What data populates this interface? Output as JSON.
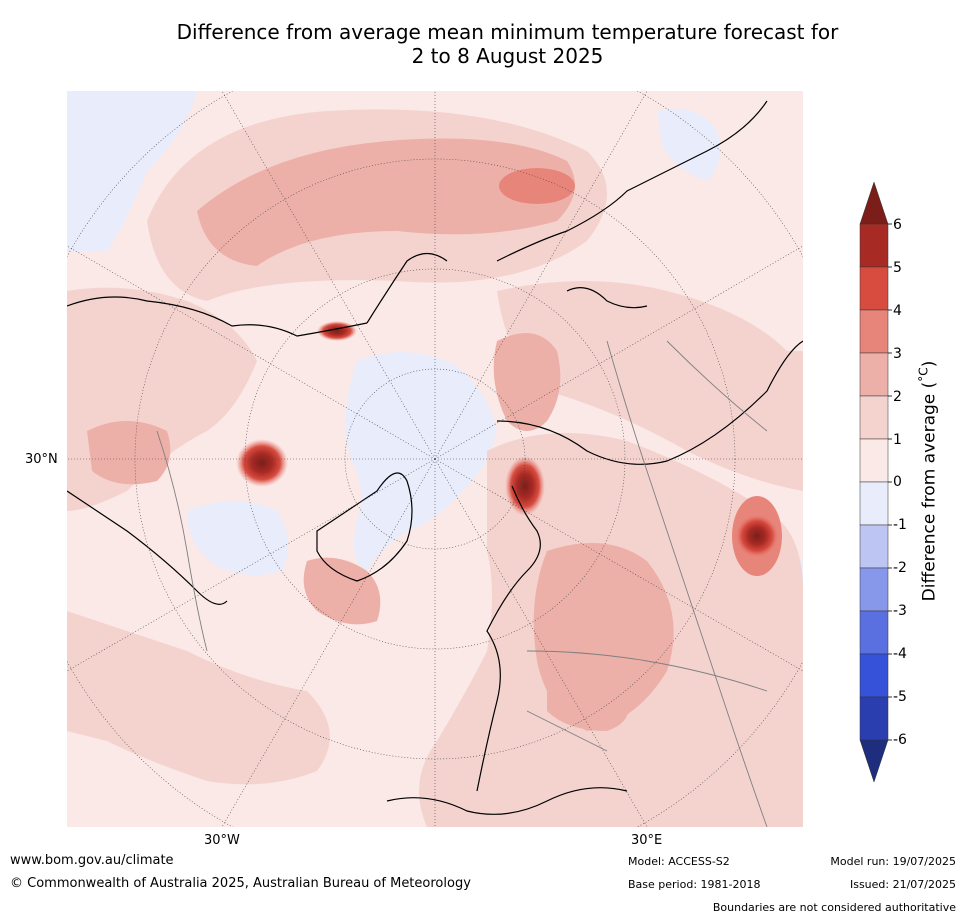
{
  "title_line1": "Difference from average mean minimum temperature forecast for",
  "title_line2": "2 to 8 August 2025",
  "map": {
    "projection": "north-polar-stereographic",
    "latitude_label": "30°N",
    "longitude_labels": [
      "30°W",
      "30°E"
    ],
    "ocean_color": "#fbe9e7",
    "land_border_color": "#7f7f7f",
    "coast_color": "#000000"
  },
  "colorbar": {
    "label": "Difference from average (°C)",
    "label_prefix": "Difference from average (",
    "label_unit": "°C",
    "label_suffix": ")",
    "ticks": [
      "6",
      "5",
      "4",
      "3",
      "2",
      "1",
      "0",
      "-1",
      "-2",
      "-3",
      "-4",
      "-5",
      "-6"
    ],
    "bins": [
      {
        "from": 6,
        "to": 99,
        "color": "#7b1e1a"
      },
      {
        "from": 5,
        "to": 6,
        "color": "#a82a24"
      },
      {
        "from": 4,
        "to": 5,
        "color": "#d84c40"
      },
      {
        "from": 3,
        "to": 4,
        "color": "#e8857b"
      },
      {
        "from": 2,
        "to": 3,
        "color": "#edb0a9"
      },
      {
        "from": 1,
        "to": 2,
        "color": "#f4d3cf"
      },
      {
        "from": 0,
        "to": 1,
        "color": "#fbe9e7"
      },
      {
        "from": -1,
        "to": 0,
        "color": "#e8ecfb"
      },
      {
        "from": -2,
        "to": -1,
        "color": "#bdc6f2"
      },
      {
        "from": -3,
        "to": -2,
        "color": "#8798ea"
      },
      {
        "from": -4,
        "to": -3,
        "color": "#5a6fe0"
      },
      {
        "from": -5,
        "to": -4,
        "color": "#3552d9"
      },
      {
        "from": -6,
        "to": -5,
        "color": "#2a3eb0"
      },
      {
        "from": -99,
        "to": -6,
        "color": "#1e2d7d"
      }
    ]
  },
  "footer": {
    "site": "www.bom.gov.au/climate",
    "copyright": "© Commonwealth of Australia 2025, Australian Bureau of Meteorology",
    "model": "Model: ACCESS-S2",
    "base_period": "Base period: 1981-2018",
    "model_run": "Model run: 19/07/2025",
    "issued": "Issued: 21/07/2025",
    "disclaimer": "Boundaries are not considered authoritative"
  }
}
